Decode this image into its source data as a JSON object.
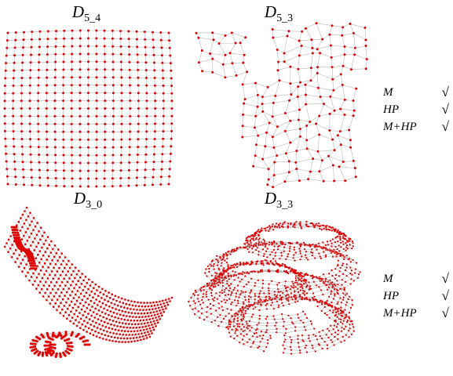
{
  "panels": [
    {
      "title": {
        "main": "D",
        "sub": "5_4"
      }
    },
    {
      "title": {
        "main": "D",
        "sub": "5_3"
      }
    },
    {
      "title": {
        "main": "D",
        "sub": "3_0"
      }
    },
    {
      "title": {
        "main": "D",
        "sub": "3_3"
      }
    }
  ],
  "checklists": [
    {
      "items": [
        {
          "label": "M",
          "mark": "√"
        },
        {
          "label": "HP",
          "mark": "√"
        },
        {
          "label": "M+HP",
          "mark": "√"
        }
      ]
    },
    {
      "items": [
        {
          "label": "M",
          "mark": "√"
        },
        {
          "label": "HP",
          "mark": "√"
        },
        {
          "label": "M+HP",
          "mark": "√"
        }
      ]
    }
  ]
}
